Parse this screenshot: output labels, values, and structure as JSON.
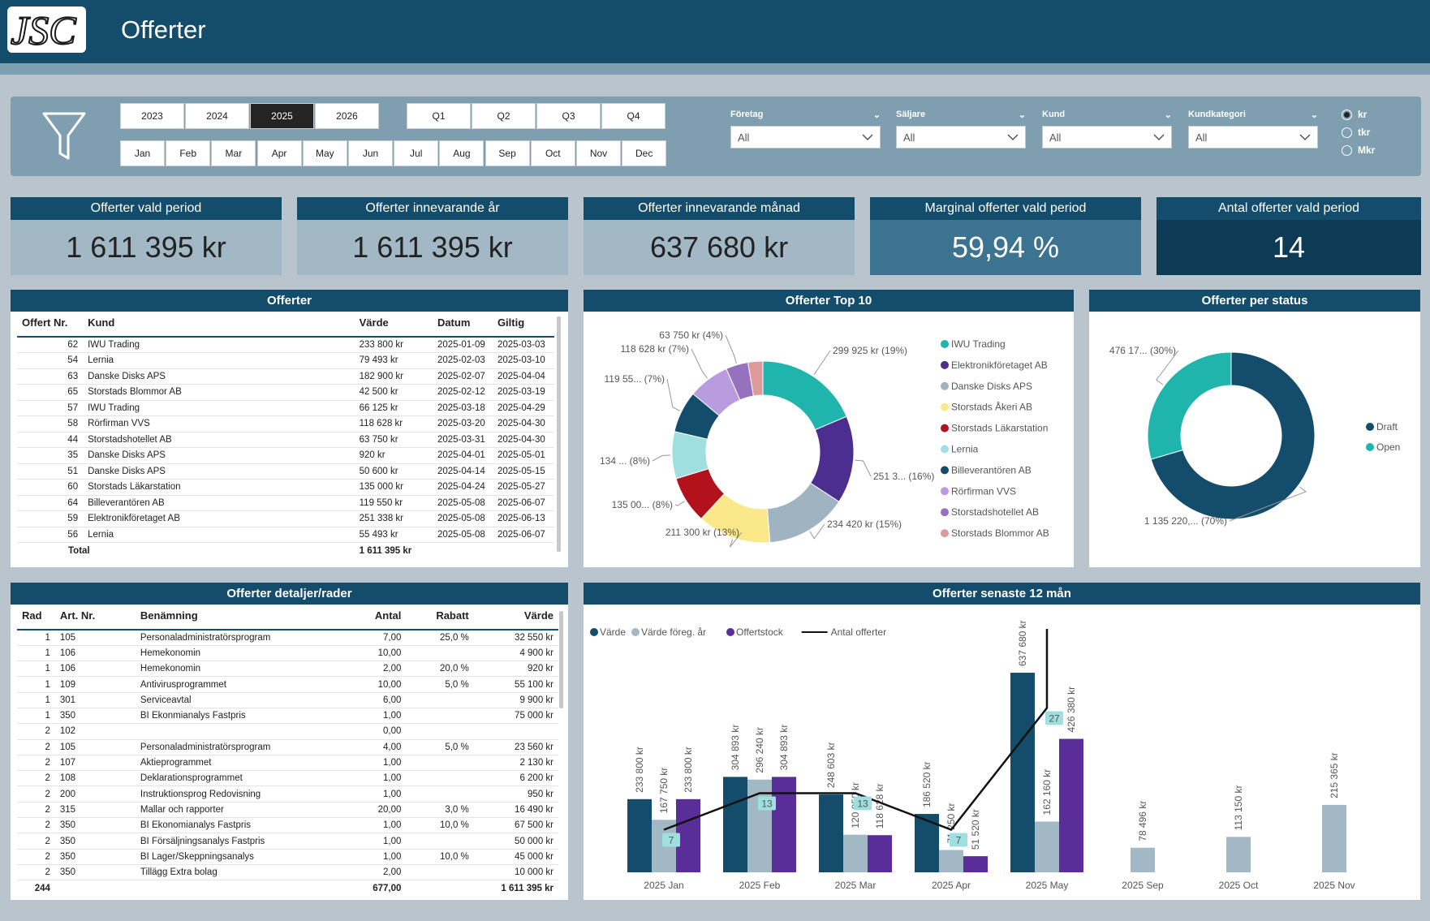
{
  "header": {
    "logo_text": "JSC",
    "title": "Offerter"
  },
  "filters": {
    "years": [
      {
        "label": "2023",
        "selected": false
      },
      {
        "label": "2024",
        "selected": false
      },
      {
        "label": "2025",
        "selected": true
      },
      {
        "label": "2026",
        "selected": false
      }
    ],
    "quarters": [
      "Q1",
      "Q2",
      "Q3",
      "Q4"
    ],
    "months": [
      "Jan",
      "Feb",
      "Mar",
      "Apr",
      "May",
      "Jun",
      "Jul",
      "Aug",
      "Sep",
      "Oct",
      "Nov",
      "Dec"
    ],
    "dropdowns": [
      {
        "label": "Företag",
        "value": "All"
      },
      {
        "label": "Säljare",
        "value": "All"
      },
      {
        "label": "Kund",
        "value": "All"
      },
      {
        "label": "Kundkategori",
        "value": "All"
      }
    ],
    "units": [
      {
        "label": "kr",
        "selected": true
      },
      {
        "label": "tkr",
        "selected": false
      },
      {
        "label": "Mkr",
        "selected": false
      }
    ]
  },
  "kpis": [
    {
      "title": "Offerter vald period",
      "value": "1 611 395 kr",
      "bg": "#a3b8c5",
      "header_bg": "#134d6b",
      "color": "#222"
    },
    {
      "title": "Offerter innevarande år",
      "value": "1 611 395 kr",
      "bg": "#a3b8c5",
      "header_bg": "#134d6b",
      "color": "#222"
    },
    {
      "title": "Offerter innevarande månad",
      "value": "637 680 kr",
      "bg": "#a3b8c5",
      "header_bg": "#134d6b",
      "color": "#222"
    },
    {
      "title": "Marginal offerter vald period",
      "value": "59,94 %",
      "bg": "#3b7391",
      "header_bg": "#134d6b",
      "color": "#fff"
    },
    {
      "title": "Antal offerter vald period",
      "value": "14",
      "bg": "#0d3a54",
      "header_bg": "#134d6b",
      "color": "#fff"
    }
  ],
  "offers_table": {
    "title": "Offerter",
    "columns": [
      "Offert Nr.",
      "Kund",
      "Värde",
      "Datum",
      "Giltig"
    ],
    "rows": [
      [
        "62",
        "IWU Trading",
        "233 800 kr",
        "2025-01-09",
        "2025-03-03"
      ],
      [
        "54",
        "Lernia",
        "79 493 kr",
        "2025-02-03",
        "2025-03-10"
      ],
      [
        "63",
        "Danske Disks APS",
        "182 900 kr",
        "2025-02-07",
        "2025-04-04"
      ],
      [
        "65",
        "Storstads Blommor AB",
        "42 500 kr",
        "2025-02-12",
        "2025-03-19"
      ],
      [
        "57",
        "IWU Trading",
        "66 125 kr",
        "2025-03-18",
        "2025-04-29"
      ],
      [
        "58",
        "Rörfirman VVS",
        "118 628 kr",
        "2025-03-20",
        "2025-04-30"
      ],
      [
        "44",
        "Storstadshotellet AB",
        "63 750 kr",
        "2025-03-31",
        "2025-04-30"
      ],
      [
        "35",
        "Danske Disks APS",
        "920 kr",
        "2025-04-01",
        "2025-05-01"
      ],
      [
        "51",
        "Danske Disks APS",
        "50 600 kr",
        "2025-04-14",
        "2025-05-15"
      ],
      [
        "60",
        "Storstads Läkarstation",
        "135 000 kr",
        "2025-04-24",
        "2025-05-27"
      ],
      [
        "64",
        "Billeverantören AB",
        "119 550 kr",
        "2025-05-08",
        "2025-06-07"
      ],
      [
        "59",
        "Elektronikföretaget AB",
        "251 338 kr",
        "2025-05-08",
        "2025-06-13"
      ],
      [
        "56",
        "Lernia",
        "55 493 kr",
        "2025-05-08",
        "2025-06-07"
      ]
    ],
    "total_label": "Total",
    "total_value": "1 611 395 kr"
  },
  "top10": {
    "title": "Offerter Top 10",
    "slices": [
      {
        "name": "IWU Trading",
        "value": 299925,
        "label": "299 925 kr (19%)",
        "color": "#1fb5ac"
      },
      {
        "name": "Elektronikföretaget AB",
        "value": 251338,
        "label": "251 3... (16%)",
        "color": "#4b2e8f"
      },
      {
        "name": "Danske Disks APS",
        "value": 234420,
        "label": "234 420 kr (15%)",
        "color": "#9fb3c1"
      },
      {
        "name": "Storstads Åkeri AB",
        "value": 211300,
        "label": "211 300 kr (13%)",
        "color": "#fbe88a"
      },
      {
        "name": "Storstads Läkarstation",
        "value": 135000,
        "label": "135 00... (8%)",
        "color": "#b3121c"
      },
      {
        "name": "Lernia",
        "value": 134986,
        "label": "134 ... (8%)",
        "color": "#a0dfdf"
      },
      {
        "name": "Billeverantören AB",
        "value": 119550,
        "label": "119 55... (7%)",
        "color": "#134d6b"
      },
      {
        "name": "Rörfirman VVS",
        "value": 118628,
        "label": "118 628 kr (7%)",
        "color": "#b99be0"
      },
      {
        "name": "Storstadshotellet AB",
        "value": 63750,
        "label": "63 750 kr (4%)",
        "color": "#9672be"
      },
      {
        "name": "Storstads Blommor AB",
        "value": 42500,
        "label": "",
        "color": "#dc9a9a"
      }
    ]
  },
  "status": {
    "title": "Offerter per status",
    "slices": [
      {
        "name": "Draft",
        "value": 1135220,
        "label": "1 135 220,... (70%)",
        "color": "#134d6b"
      },
      {
        "name": "Open",
        "value": 476175,
        "label": "476 17... (30%)",
        "color": "#1fb5ac"
      }
    ]
  },
  "details_table": {
    "title": "Offerter detaljer/rader",
    "columns": [
      "Rad",
      "Art. Nr.",
      "Benämning",
      "Antal",
      "Rabatt",
      "Värde"
    ],
    "rows": [
      [
        "1",
        "105",
        "Personaladministratörsprogram",
        "7,00",
        "25,0 %",
        "32 550 kr"
      ],
      [
        "1",
        "106",
        "Hemekonomin",
        "10,00",
        "",
        "4 900 kr"
      ],
      [
        "1",
        "106",
        "Hemekonomin",
        "2,00",
        "20,0 %",
        "920 kr"
      ],
      [
        "1",
        "109",
        "Antivirusprogrammet",
        "10,00",
        "5,0 %",
        "55 100 kr"
      ],
      [
        "1",
        "301",
        "Serviceavtal",
        "6,00",
        "",
        "9 900 kr"
      ],
      [
        "1",
        "350",
        "BI Ekonmianalys Fastpris",
        "1,00",
        "",
        "75 000 kr"
      ],
      [
        "2",
        "102",
        "",
        "0,00",
        "",
        ""
      ],
      [
        "2",
        "105",
        "Personaladministratörsprogram",
        "4,00",
        "5,0 %",
        "23 560 kr"
      ],
      [
        "2",
        "107",
        "Aktieprogrammet",
        "1,00",
        "",
        "2 130 kr"
      ],
      [
        "2",
        "108",
        "Deklarationsprogrammet",
        "1,00",
        "",
        "6 200 kr"
      ],
      [
        "2",
        "200",
        "Instruktionsprog Redovisning",
        "1,00",
        "",
        "950 kr"
      ],
      [
        "2",
        "315",
        "Mallar och rapporter",
        "20,00",
        "3,0 %",
        "16 490 kr"
      ],
      [
        "2",
        "350",
        "BI Ekonomianalys Fastpris",
        "1,00",
        "10,0 %",
        "67 500 kr"
      ],
      [
        "2",
        "350",
        "BI Försäljningsanalys Fastpris",
        "1,00",
        "",
        "50 000 kr"
      ],
      [
        "2",
        "350",
        "BI Lager/Skeppningsanalys",
        "1,00",
        "10,0 %",
        "45 000 kr"
      ],
      [
        "2",
        "350",
        "Tillägg Extra bolag",
        "2,00",
        "",
        "10 000 kr"
      ]
    ],
    "total": [
      "244",
      "",
      "",
      "677,00",
      "",
      "1 611 395 kr"
    ]
  },
  "chart_data": {
    "type": "bar",
    "title": "Offerter senaste 12 mån",
    "categories": [
      "2025 Jan",
      "2025 Feb",
      "2025 Mar",
      "2025 Apr",
      "2025 May",
      "2025 Sep",
      "2025 Oct",
      "2025 Nov"
    ],
    "series": [
      {
        "name": "Värde",
        "color": "#134d6b",
        "values": [
          233800,
          304893,
          248603,
          186520,
          637680,
          null,
          null,
          null
        ],
        "labels": [
          "233 800 kr",
          "304 893 kr",
          "248 603 kr",
          "186 520 kr",
          "637 680 kr",
          "",
          "",
          ""
        ]
      },
      {
        "name": "Värde föreg. år",
        "color": "#a3b8c5",
        "values": [
          167750,
          296240,
          120050,
          71250,
          162160,
          78496,
          113150,
          215365
        ],
        "labels": [
          "167 750 kr",
          "296 240 kr",
          "120 050 kr",
          "71 250 kr",
          "162 160 kr",
          "78 496 kr",
          "113 150 kr",
          "215 365 kr"
        ]
      },
      {
        "name": "Offertstock",
        "color": "#5a2e98",
        "values": [
          233800,
          304893,
          118628,
          51520,
          426380,
          null,
          null,
          null
        ],
        "labels": [
          "233 800 kr",
          "304 893 kr",
          "118 628 kr",
          "51 520 kr",
          "426 380 kr",
          "",
          "",
          ""
        ]
      }
    ],
    "line": {
      "name": "Antal offerter",
      "color": "#111",
      "values": [
        7,
        13,
        13,
        7,
        27
      ],
      "labels": [
        "7",
        "13",
        "13",
        "7",
        "27"
      ]
    },
    "ylim": [
      0,
      700000
    ]
  }
}
